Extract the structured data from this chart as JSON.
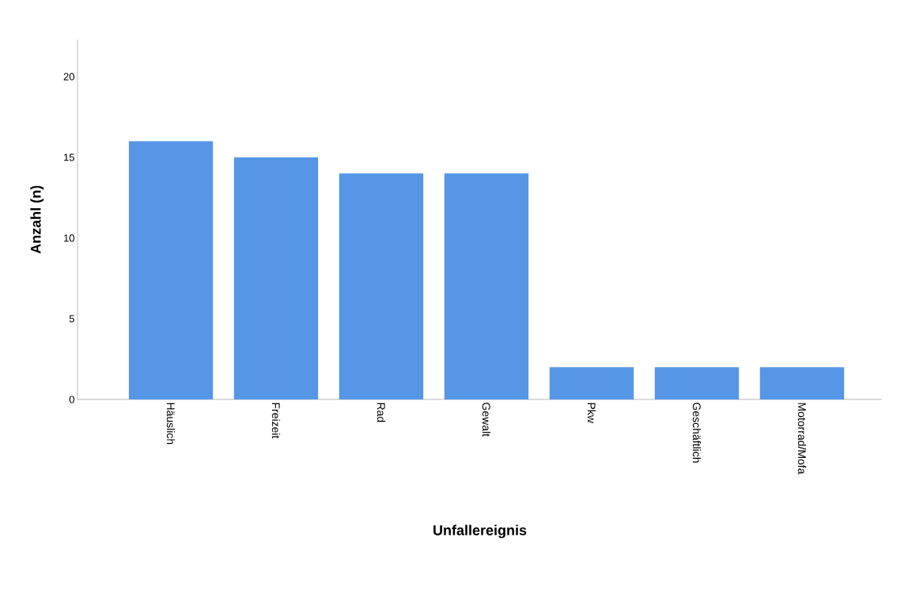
{
  "chart_data": {
    "type": "bar",
    "xlabel": "Unfallereignis",
    "ylabel": "Anzahl (n)",
    "categories": [
      "Häuslich",
      "Freizeit",
      "Rad",
      "Gewalt",
      "Pkw",
      "Geschäftlich",
      "Motorrad/Mofa"
    ],
    "values": [
      16,
      15,
      14,
      14,
      2,
      2,
      2
    ],
    "color": "#5596e6",
    "ylim": [
      0,
      22.3
    ],
    "yticks": [
      0,
      5,
      10,
      15,
      20
    ],
    "grid": false
  }
}
